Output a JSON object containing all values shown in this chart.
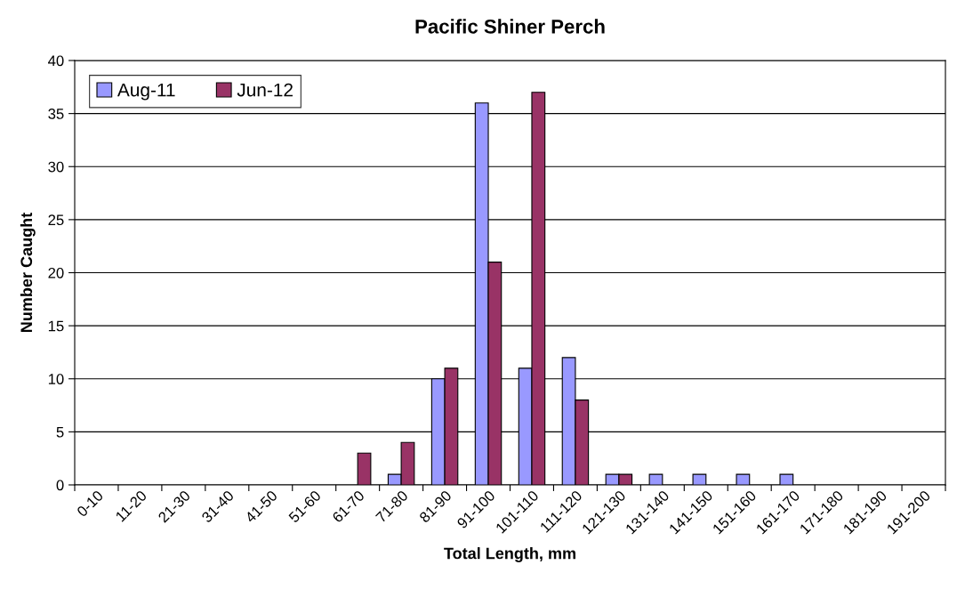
{
  "chart_data": {
    "type": "bar",
    "title": "Pacific Shiner Perch",
    "xlabel": "Total Length, mm",
    "ylabel": "Number Caught",
    "categories": [
      "0-10",
      "11-20",
      "21-30",
      "31-40",
      "41-50",
      "51-60",
      "61-70",
      "71-80",
      "81-90",
      "91-100",
      "101-110",
      "111-120",
      "121-130",
      "131-140",
      "141-150",
      "151-160",
      "161-170",
      "171-180",
      "181-190",
      "191-200"
    ],
    "series": [
      {
        "name": "Aug-11",
        "color": "#9999ff",
        "values": [
          0,
          0,
          0,
          0,
          0,
          0,
          0,
          1,
          10,
          36,
          11,
          12,
          1,
          1,
          1,
          1,
          1,
          0,
          0,
          0
        ]
      },
      {
        "name": "Jun-12",
        "color": "#993366",
        "values": [
          0,
          0,
          0,
          0,
          0,
          0,
          3,
          4,
          11,
          21,
          37,
          8,
          1,
          0,
          0,
          0,
          0,
          0,
          0,
          0
        ]
      }
    ],
    "ylim": [
      0,
      40
    ],
    "yticks": [
      0,
      5,
      10,
      15,
      20,
      25,
      30,
      35,
      40
    ],
    "grid": "y",
    "legend": "top left"
  }
}
